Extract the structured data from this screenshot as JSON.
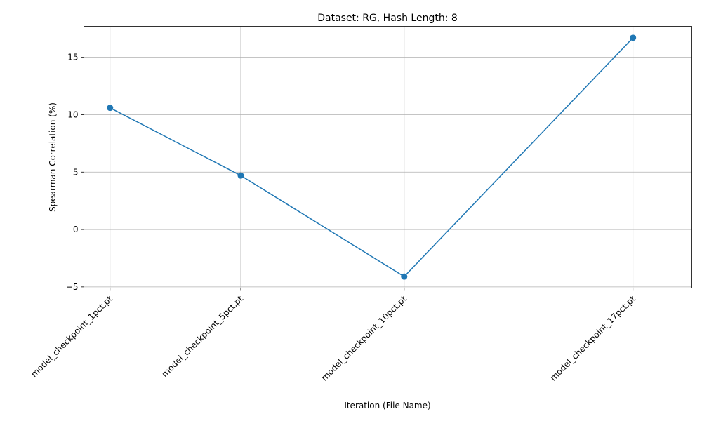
{
  "chart_data": {
    "type": "line",
    "title": "Dataset: RG, Hash Length: 8",
    "xlabel": "Iteration (File Name)",
    "ylabel": "Spearman Correlation (%)",
    "x": [
      1,
      5,
      10,
      17
    ],
    "categories": [
      "model_checkpoint_1pct.pt",
      "model_checkpoint_5pct.pt",
      "model_checkpoint_10pct.pt",
      "model_checkpoint_17pct.pt"
    ],
    "series": [
      {
        "values": [
          10.6,
          4.7,
          -4.1,
          16.7
        ]
      }
    ],
    "xlim": [
      0.2,
      18.8
    ],
    "ylim": [
      -5.1,
      17.7
    ],
    "yticks": [
      -5,
      0,
      5,
      10,
      15
    ],
    "yticklabels": [
      "−5",
      "0",
      "5",
      "10",
      "15"
    ],
    "grid": true,
    "color": "#1f77b4",
    "marker": "circle"
  }
}
